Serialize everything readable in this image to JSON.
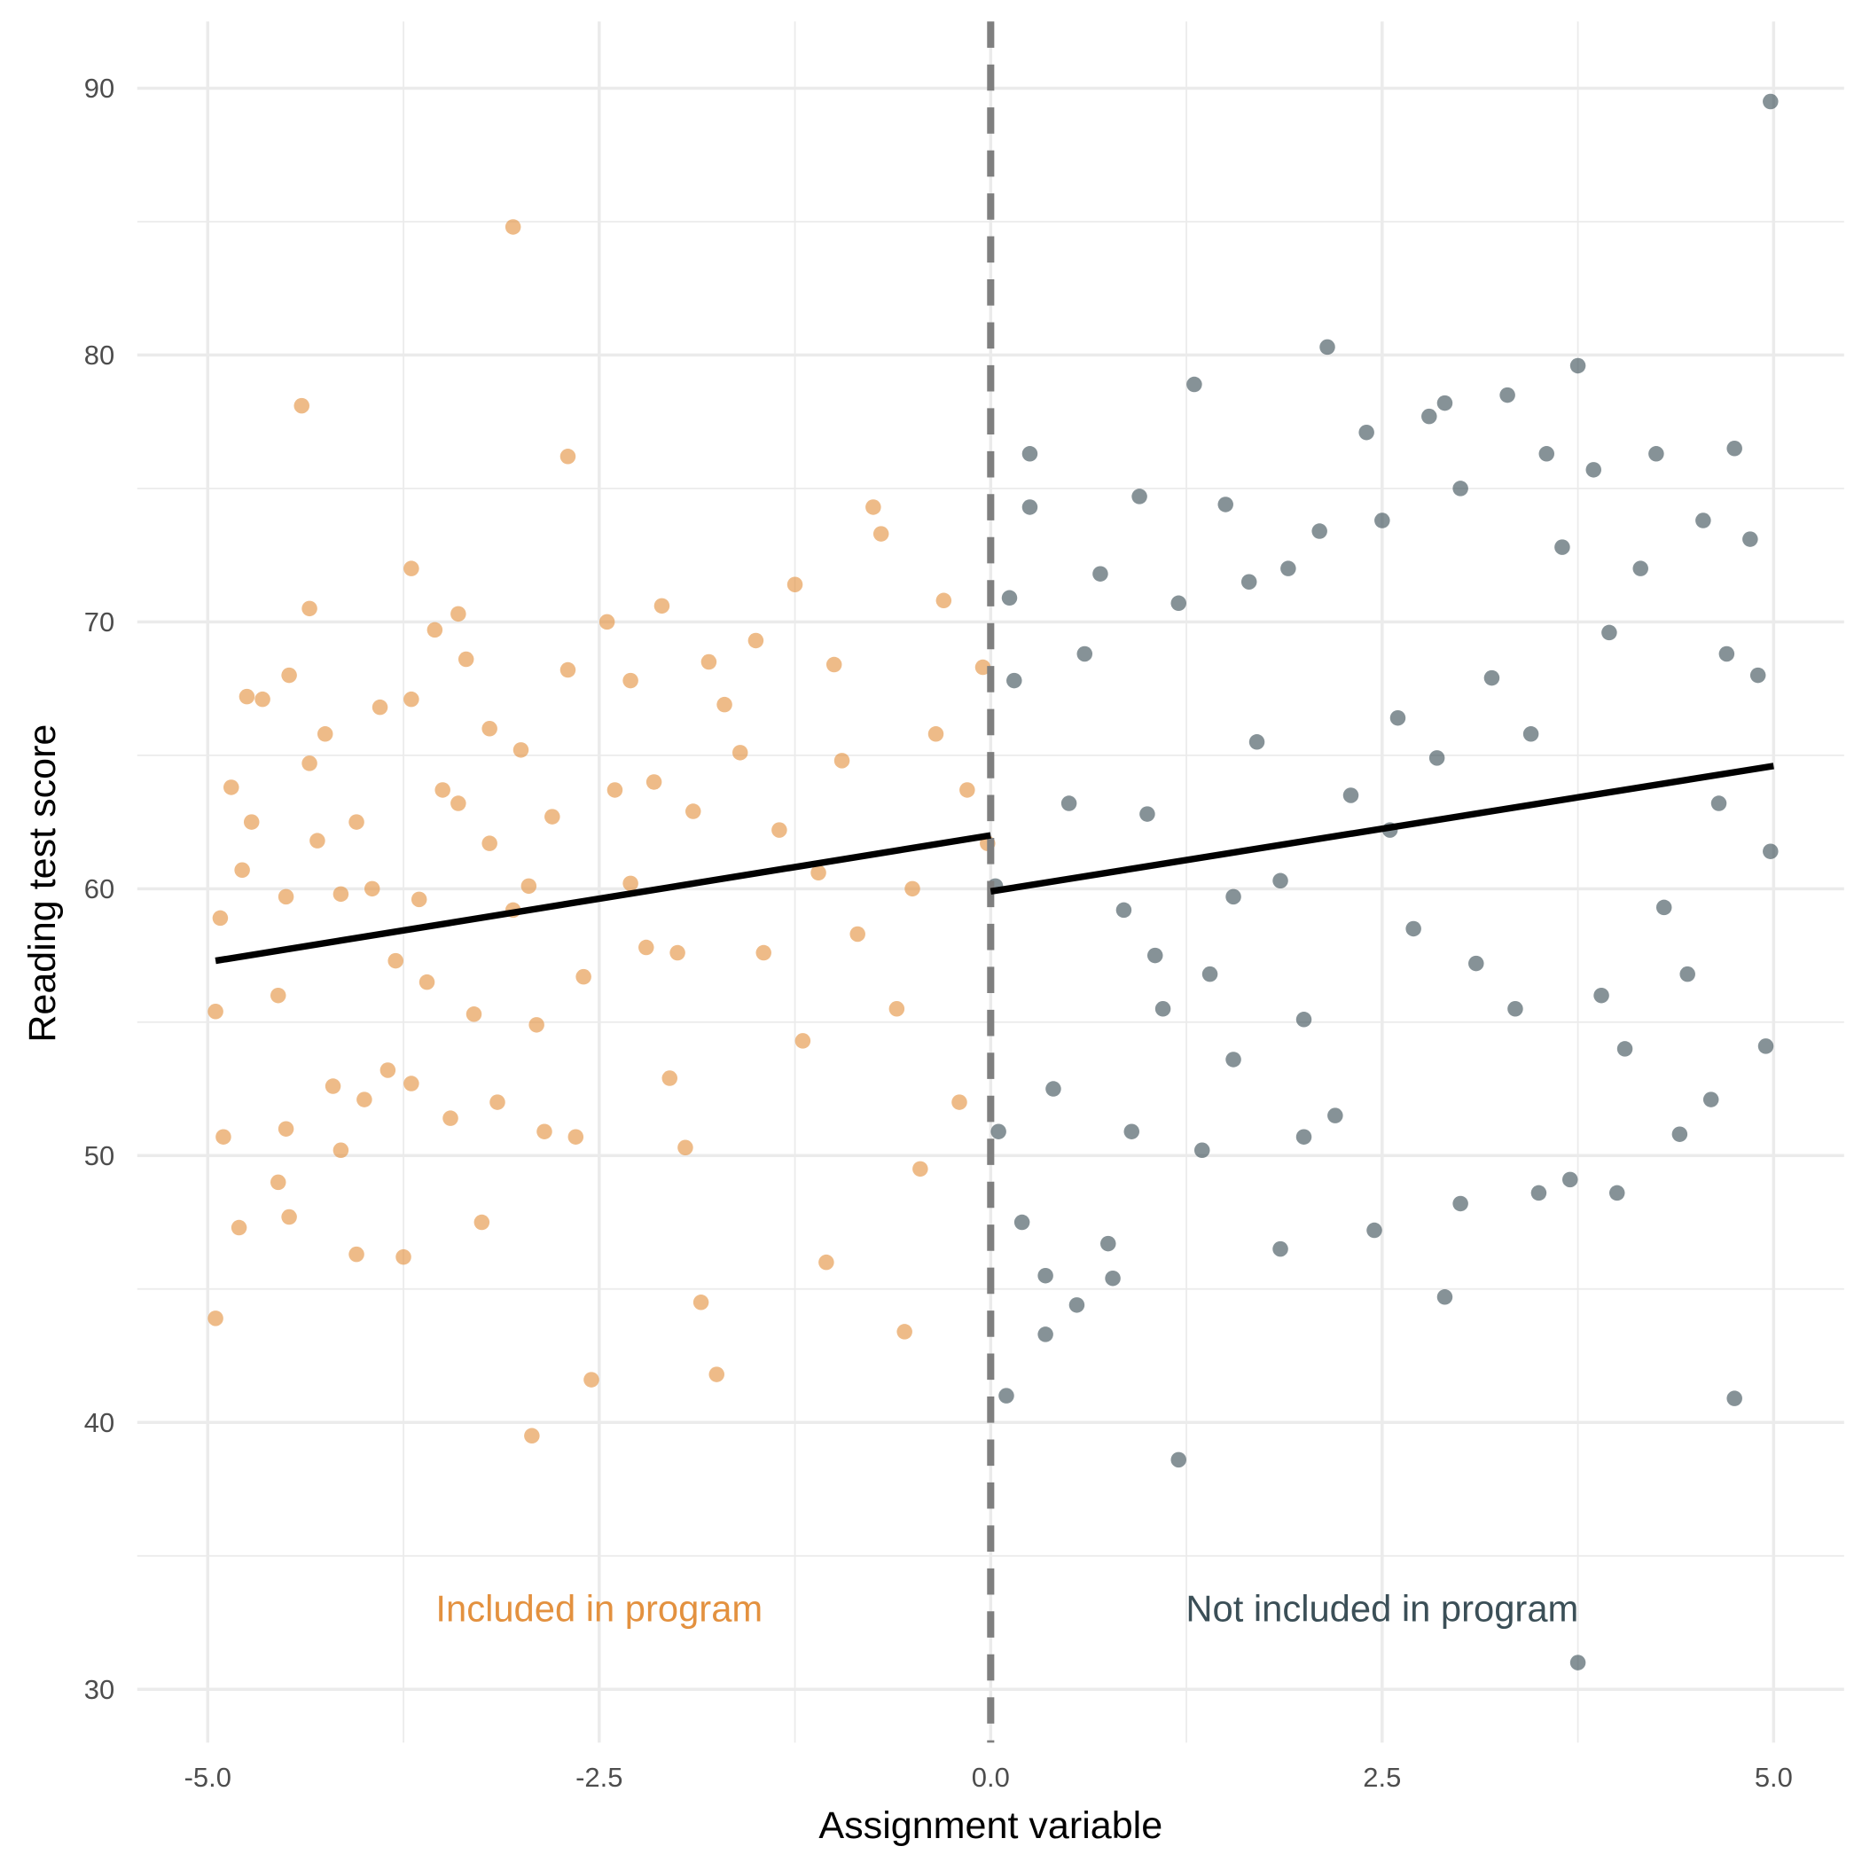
{
  "chart_data": {
    "type": "scatter",
    "x_label": "Assignment variable",
    "y_label": "Reading test score",
    "xlim": [
      -5.45,
      5.45
    ],
    "ylim": [
      28,
      92.5
    ],
    "xticks": [
      {
        "value": -5,
        "label": "-5.0"
      },
      -2.5,
      {
        "value": 0,
        "label": "0.0"
      },
      2.5,
      {
        "value": 5,
        "label": "5.0"
      }
    ],
    "yticks": [
      30,
      40,
      50,
      60,
      70,
      80,
      90
    ],
    "x_minor_grid": [
      -3.75,
      -1.25,
      1.25,
      3.75
    ],
    "y_minor_grid": [
      35,
      45,
      55,
      65,
      75,
      85
    ],
    "grid": true,
    "cutoff_x": 0,
    "series": [
      {
        "color": "#e3913f",
        "x": [
          -4.95,
          -4.95,
          -4.92,
          -4.9,
          -4.85,
          -4.8,
          -4.78,
          -4.75,
          -4.72,
          -4.65,
          -4.55,
          -4.55,
          -4.5,
          -4.5,
          -4.48,
          -4.48,
          -4.4,
          -4.35,
          -4.35,
          -4.3,
          -4.25,
          -4.2,
          -4.15,
          -4.15,
          -4.05,
          -4.05,
          -4.0,
          -3.95,
          -3.9,
          -3.85,
          -3.8,
          -3.75,
          -3.7,
          -3.7,
          -3.7,
          -3.65,
          -3.6,
          -3.55,
          -3.5,
          -3.45,
          -3.4,
          -3.4,
          -3.35,
          -3.3,
          -3.25,
          -3.2,
          -3.2,
          -3.15,
          -3.05,
          -3.05,
          -3.0,
          -2.95,
          -2.93,
          -2.9,
          -2.85,
          -2.8,
          -2.7,
          -2.7,
          -2.65,
          -2.6,
          -2.55,
          -2.45,
          -2.4,
          -2.3,
          -2.3,
          -2.2,
          -2.15,
          -2.1,
          -2.05,
          -2.0,
          -1.95,
          -1.9,
          -1.85,
          -1.8,
          -1.75,
          -1.7,
          -1.6,
          -1.5,
          -1.45,
          -1.35,
          -1.25,
          -1.2,
          -1.1,
          -1.05,
          -1.0,
          -0.95,
          -0.85,
          -0.75,
          -0.7,
          -0.6,
          -0.55,
          -0.5,
          -0.45,
          -0.35,
          -0.3,
          -0.2,
          -0.15,
          -0.05,
          -0.02
        ],
        "y": [
          55.4,
          43.9,
          58.9,
          50.7,
          63.8,
          47.3,
          60.7,
          67.2,
          62.5,
          67.1,
          56,
          49,
          59.7,
          51,
          68,
          47.7,
          78.1,
          70.5,
          64.7,
          61.8,
          65.8,
          52.6,
          59.8,
          50.2,
          62.5,
          46.3,
          52.1,
          60,
          66.8,
          53.2,
          57.3,
          46.2,
          72,
          67.1,
          52.7,
          59.6,
          56.5,
          69.7,
          63.7,
          51.4,
          70.3,
          63.2,
          68.6,
          55.3,
          47.5,
          66,
          61.7,
          52,
          84.8,
          59.2,
          65.2,
          60.1,
          39.5,
          54.9,
          50.9,
          62.7,
          76.2,
          68.2,
          50.7,
          56.7,
          41.6,
          70,
          63.7,
          60.2,
          67.8,
          57.8,
          64,
          70.6,
          52.9,
          57.6,
          50.3,
          62.9,
          44.5,
          68.5,
          41.8,
          66.9,
          65.1,
          69.3,
          57.6,
          62.2,
          71.4,
          54.3,
          60.6,
          46,
          68.4,
          64.8,
          58.3,
          74.3,
          73.3,
          55.5,
          43.4,
          60,
          49.5,
          65.8,
          70.8,
          52,
          63.7,
          68.3,
          61.7
        ]
      },
      {
        "color": "#3b4f57",
        "x": [
          0.03,
          0.05,
          0.1,
          0.12,
          0.2,
          0.25,
          0.25,
          0.35,
          0.35,
          0.4,
          0.55,
          0.6,
          0.7,
          0.75,
          0.78,
          0.85,
          0.95,
          1.0,
          1.1,
          1.2,
          1.2,
          1.3,
          1.35,
          1.5,
          1.55,
          1.65,
          1.7,
          1.85,
          1.85,
          1.9,
          2.0,
          2.1,
          2.15,
          2.2,
          2.3,
          2.4,
          2.45,
          2.5,
          2.6,
          2.7,
          2.8,
          2.85,
          2.9,
          2.9,
          3.0,
          3.0,
          3.1,
          3.2,
          3.3,
          3.35,
          3.5,
          3.55,
          3.65,
          3.7,
          3.75,
          3.75,
          3.85,
          3.95,
          4.0,
          4.05,
          4.15,
          4.25,
          4.3,
          4.4,
          4.55,
          4.6,
          4.7,
          4.75,
          4.75,
          4.85,
          4.9,
          4.95,
          4.98,
          4.98,
          4.65,
          3.45,
          2.55,
          1.55,
          0.5,
          0.15,
          1.05,
          3.9,
          4.45,
          2.0,
          1.4,
          0.9
        ],
        "y": [
          60.1,
          50.9,
          41,
          70.9,
          47.5,
          76.3,
          74.3,
          43.3,
          45.5,
          52.5,
          44.4,
          68.8,
          71.8,
          46.7,
          45.4,
          59.2,
          74.7,
          62.8,
          55.5,
          70.7,
          38.6,
          78.9,
          50.2,
          74.4,
          53.6,
          71.5,
          65.5,
          60.3,
          46.5,
          72,
          55.1,
          73.4,
          80.3,
          51.5,
          63.5,
          77.1,
          47.2,
          73.8,
          66.4,
          58.5,
          77.7,
          64.9,
          78.2,
          44.7,
          75,
          48.2,
          57.2,
          67.9,
          78.5,
          55.5,
          48.6,
          76.3,
          72.8,
          49.1,
          79.6,
          31,
          75.7,
          69.6,
          48.6,
          54,
          72,
          76.3,
          59.3,
          50.8,
          73.8,
          52.1,
          68.8,
          76.5,
          40.9,
          73.1,
          68,
          54.1,
          89.5,
          61.4,
          63.2,
          65.8,
          62.2,
          59.7,
          63.2,
          67.8,
          57.5,
          56,
          56.8,
          50.7,
          56.8,
          50.9
        ]
      }
    ],
    "fits": [
      {
        "color": "#000000",
        "x": [
          -4.95,
          0
        ],
        "y": [
          57.3,
          62.0
        ]
      },
      {
        "color": "#000000",
        "x": [
          0,
          5
        ],
        "y": [
          59.9,
          64.6
        ]
      }
    ],
    "annotations": [
      {
        "text": "Included in program",
        "x": -2.5,
        "y": 33,
        "color": "#e3913f"
      },
      {
        "text": "Not included in program",
        "x": 2.5,
        "y": 33,
        "color": "#3b4f57"
      }
    ]
  }
}
